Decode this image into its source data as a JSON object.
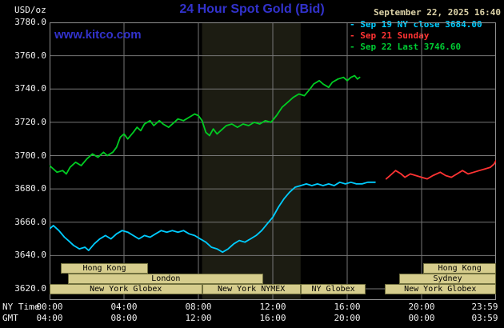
{
  "header": {
    "unit_label": "USD/oz",
    "title": "24 Hour Spot Gold (Bid)",
    "datetime": "September 22, 2025 16:40",
    "watermark": "www.kitco.com"
  },
  "colors": {
    "title_blue": "#3232cc",
    "date_tan": "#ddd3a8",
    "grid": "#767676",
    "border": "#909090",
    "band": "#1c1c12",
    "session_fill": "#d6cd8d",
    "session_border": "#72713f",
    "axis_text": "#f0f0f0"
  },
  "legend": [
    {
      "id": "sep19",
      "label": "Sep 19 NY close 3684.00",
      "color": "#00ccff"
    },
    {
      "id": "sep21",
      "label": "Sep 21 Sunday",
      "color": "#ff3333"
    },
    {
      "id": "sep22",
      "label": "Sep 22 Last 3746.60",
      "color": "#00cc33"
    }
  ],
  "axes": {
    "ny_label": "NY Time",
    "gmt_label": "GMT",
    "grid_hours": [
      4,
      8,
      12,
      16,
      20
    ],
    "ny_ticks": [
      {
        "hour": 0,
        "label": "00:00"
      },
      {
        "hour": 4,
        "label": "04:00"
      },
      {
        "hour": 8,
        "label": "08:00"
      },
      {
        "hour": 12,
        "label": "12:00"
      },
      {
        "hour": 16,
        "label": "16:00"
      },
      {
        "hour": 20,
        "label": "20:00"
      },
      {
        "hour": 23.983,
        "label": "23:59"
      }
    ],
    "gmt_ticks": [
      {
        "hour": 0,
        "label": "04:00"
      },
      {
        "hour": 4,
        "label": "08:00"
      },
      {
        "hour": 8,
        "label": "12:00"
      },
      {
        "hour": 12,
        "label": "16:00"
      },
      {
        "hour": 16,
        "label": "20:00"
      },
      {
        "hour": 20,
        "label": "00:00"
      },
      {
        "hour": 23.983,
        "label": "03:59"
      }
    ],
    "y_ticks": [
      {
        "value": 3780,
        "label": "3780.0"
      },
      {
        "value": 3760,
        "label": "3760.0"
      },
      {
        "value": 3740,
        "label": "3740.0"
      },
      {
        "value": 3720,
        "label": "3720.0"
      },
      {
        "value": 3700,
        "label": "3700.0"
      },
      {
        "value": 3680,
        "label": "3680.0"
      },
      {
        "value": 3660,
        "label": "3660.0"
      },
      {
        "value": 3640,
        "label": "3640.0"
      },
      {
        "value": 3620,
        "label": "3620.0"
      }
    ]
  },
  "sessions": [
    {
      "row": 0,
      "start": 0.6,
      "end": 5.3,
      "label": "Hong Kong"
    },
    {
      "row": 0,
      "start": 20.1,
      "end": 24,
      "label": "Hong Kong"
    },
    {
      "row": 1,
      "start": 1.0,
      "end": 11.5,
      "label": "London"
    },
    {
      "row": 1,
      "start": 18.8,
      "end": 24,
      "label": "Sydney"
    },
    {
      "row": 2,
      "start": 0,
      "end": 8.2,
      "label": "New York Globex"
    },
    {
      "row": 2,
      "start": 8.2,
      "end": 13.5,
      "label": "New York NYMEX"
    },
    {
      "row": 2,
      "start": 13.5,
      "end": 17.0,
      "label": "NY Globex"
    },
    {
      "row": 2,
      "start": 18.0,
      "end": 24,
      "label": "New York Globex"
    }
  ],
  "chart_data": {
    "type": "line",
    "title": "24 Hour Spot Gold (Bid)",
    "xlabel": "NY Time",
    "ylabel": "USD/oz",
    "ylim": [
      3620,
      3780
    ],
    "xlim_hours": [
      0,
      24
    ],
    "grid": true,
    "legend_position": "top-right",
    "shaded_hours": [
      8.2,
      13.5
    ],
    "series": [
      {
        "id": "sep19",
        "name": "Sep 19 NY close 3684.00",
        "color": "#00ccff",
        "points": [
          [
            0,
            3656
          ],
          [
            0.2,
            3658
          ],
          [
            0.5,
            3655
          ],
          [
            0.8,
            3651
          ],
          [
            1,
            3649
          ],
          [
            1.3,
            3646
          ],
          [
            1.6,
            3644
          ],
          [
            1.9,
            3645
          ],
          [
            2.1,
            3643
          ],
          [
            2.4,
            3647
          ],
          [
            2.7,
            3650
          ],
          [
            3,
            3652
          ],
          [
            3.3,
            3650
          ],
          [
            3.6,
            3653
          ],
          [
            3.9,
            3655
          ],
          [
            4.2,
            3654
          ],
          [
            4.5,
            3652
          ],
          [
            4.8,
            3650
          ],
          [
            5.1,
            3652
          ],
          [
            5.4,
            3651
          ],
          [
            5.7,
            3653
          ],
          [
            6,
            3655
          ],
          [
            6.3,
            3654
          ],
          [
            6.6,
            3655
          ],
          [
            6.9,
            3654
          ],
          [
            7.2,
            3655
          ],
          [
            7.5,
            3653
          ],
          [
            7.8,
            3652
          ],
          [
            8.1,
            3650
          ],
          [
            8.4,
            3648
          ],
          [
            8.7,
            3645
          ],
          [
            9,
            3644
          ],
          [
            9.3,
            3642
          ],
          [
            9.6,
            3644
          ],
          [
            9.9,
            3647
          ],
          [
            10.2,
            3649
          ],
          [
            10.5,
            3648
          ],
          [
            10.8,
            3650
          ],
          [
            11.1,
            3652
          ],
          [
            11.4,
            3655
          ],
          [
            11.7,
            3659
          ],
          [
            12,
            3663
          ],
          [
            12.3,
            3669
          ],
          [
            12.6,
            3674
          ],
          [
            12.9,
            3678
          ],
          [
            13.2,
            3681
          ],
          [
            13.5,
            3682
          ],
          [
            13.8,
            3683
          ],
          [
            14.1,
            3682
          ],
          [
            14.4,
            3683
          ],
          [
            14.7,
            3682
          ],
          [
            15,
            3683
          ],
          [
            15.3,
            3682
          ],
          [
            15.6,
            3684
          ],
          [
            15.9,
            3683
          ],
          [
            16.2,
            3684
          ],
          [
            16.5,
            3683
          ],
          [
            16.8,
            3683
          ],
          [
            17.1,
            3684
          ],
          [
            17.5,
            3684
          ]
        ]
      },
      {
        "id": "sep21",
        "name": "Sep 21 Sunday",
        "color": "#ff3333",
        "points": [
          [
            18.1,
            3686
          ],
          [
            18.3,
            3688
          ],
          [
            18.6,
            3691
          ],
          [
            18.9,
            3689
          ],
          [
            19.1,
            3687
          ],
          [
            19.4,
            3689
          ],
          [
            19.7,
            3688
          ],
          [
            20,
            3687
          ],
          [
            20.3,
            3686
          ],
          [
            20.6,
            3688
          ],
          [
            21,
            3690
          ],
          [
            21.3,
            3688
          ],
          [
            21.6,
            3687
          ],
          [
            21.9,
            3689
          ],
          [
            22.2,
            3691
          ],
          [
            22.5,
            3689
          ],
          [
            22.8,
            3690
          ],
          [
            23.1,
            3691
          ],
          [
            23.4,
            3692
          ],
          [
            23.7,
            3693
          ],
          [
            23.9,
            3695
          ],
          [
            24,
            3697
          ]
        ]
      },
      {
        "id": "sep22",
        "name": "Sep 22 Last 3746.60",
        "color": "#00cc22",
        "points": [
          [
            0,
            3694
          ],
          [
            0.2,
            3692
          ],
          [
            0.4,
            3690
          ],
          [
            0.7,
            3691
          ],
          [
            0.9,
            3689
          ],
          [
            1.1,
            3693
          ],
          [
            1.4,
            3696
          ],
          [
            1.7,
            3694
          ],
          [
            2,
            3698
          ],
          [
            2.3,
            3701
          ],
          [
            2.6,
            3699
          ],
          [
            2.9,
            3702
          ],
          [
            3.1,
            3700
          ],
          [
            3.4,
            3702
          ],
          [
            3.6,
            3705
          ],
          [
            3.8,
            3711
          ],
          [
            4,
            3713
          ],
          [
            4.2,
            3710
          ],
          [
            4.5,
            3714
          ],
          [
            4.7,
            3717
          ],
          [
            4.9,
            3715
          ],
          [
            5.1,
            3719
          ],
          [
            5.4,
            3721
          ],
          [
            5.6,
            3718
          ],
          [
            5.9,
            3721
          ],
          [
            6.1,
            3719
          ],
          [
            6.4,
            3717
          ],
          [
            6.7,
            3720
          ],
          [
            6.9,
            3722
          ],
          [
            7.2,
            3721
          ],
          [
            7.5,
            3723
          ],
          [
            7.8,
            3725
          ],
          [
            8,
            3724
          ],
          [
            8.2,
            3721
          ],
          [
            8.4,
            3714
          ],
          [
            8.6,
            3712
          ],
          [
            8.8,
            3716
          ],
          [
            9,
            3713
          ],
          [
            9.2,
            3715
          ],
          [
            9.5,
            3718
          ],
          [
            9.8,
            3719
          ],
          [
            10.1,
            3717
          ],
          [
            10.4,
            3719
          ],
          [
            10.7,
            3718
          ],
          [
            11,
            3720
          ],
          [
            11.3,
            3719
          ],
          [
            11.6,
            3721
          ],
          [
            11.9,
            3720
          ],
          [
            12.2,
            3724
          ],
          [
            12.5,
            3729
          ],
          [
            12.8,
            3732
          ],
          [
            13.1,
            3735
          ],
          [
            13.4,
            3737
          ],
          [
            13.7,
            3736
          ],
          [
            14,
            3740
          ],
          [
            14.2,
            3743
          ],
          [
            14.5,
            3745
          ],
          [
            14.7,
            3743
          ],
          [
            15,
            3741
          ],
          [
            15.2,
            3744
          ],
          [
            15.5,
            3746
          ],
          [
            15.8,
            3747
          ],
          [
            16,
            3745
          ],
          [
            16.2,
            3747
          ],
          [
            16.4,
            3748
          ],
          [
            16.55,
            3746
          ],
          [
            16.67,
            3747
          ]
        ]
      }
    ]
  }
}
